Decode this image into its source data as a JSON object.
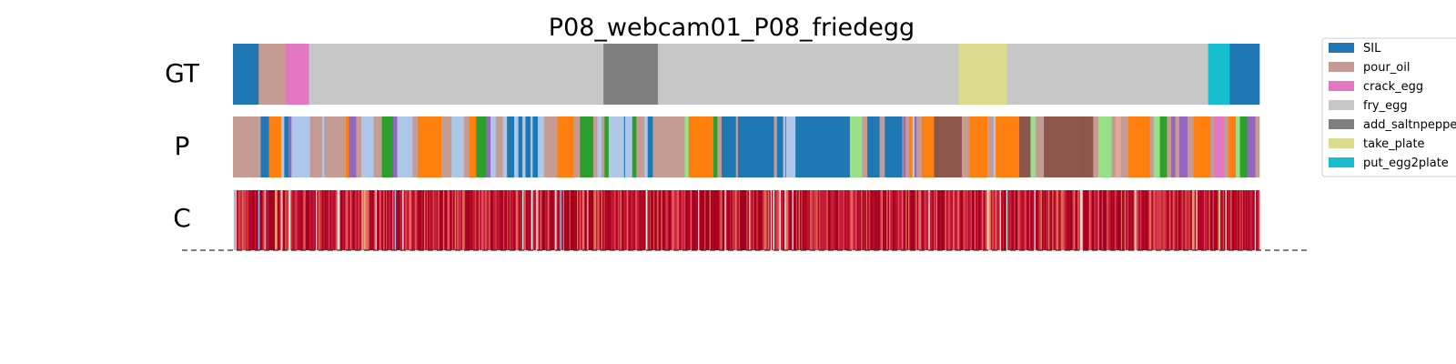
{
  "chart_data": {
    "type": "segmentation",
    "title": "P08_webcam01_P08_friedegg",
    "x_range": [
      0,
      1000
    ],
    "rows": [
      {
        "label": "GT"
      },
      {
        "label": "P"
      },
      {
        "label": "C"
      }
    ],
    "legend": {
      "placement": "right",
      "entries": [
        {
          "name": "SIL",
          "color": "#1f77b4"
        },
        {
          "name": "pour_oil",
          "color": "#c49c94"
        },
        {
          "name": "crack_egg",
          "color": "#e377c2"
        },
        {
          "name": "fry_egg",
          "color": "#c7c7c7"
        },
        {
          "name": "add_saltnpepper",
          "color": "#7f7f7f"
        },
        {
          "name": "take_plate",
          "color": "#dbdb8d"
        },
        {
          "name": "put_egg2plate",
          "color": "#17becf"
        }
      ]
    },
    "gt_segments": [
      {
        "start": 0,
        "end": 25,
        "label": "SIL"
      },
      {
        "start": 25,
        "end": 51,
        "label": "pour_oil"
      },
      {
        "start": 51,
        "end": 74,
        "label": "crack_egg"
      },
      {
        "start": 74,
        "end": 361,
        "label": "fry_egg"
      },
      {
        "start": 361,
        "end": 414,
        "label": "add_saltnpepper"
      },
      {
        "start": 414,
        "end": 707,
        "label": "fry_egg"
      },
      {
        "start": 707,
        "end": 754,
        "label": "take_plate"
      },
      {
        "start": 754,
        "end": 950,
        "label": "fry_egg"
      },
      {
        "start": 950,
        "end": 971,
        "label": "put_egg2plate"
      },
      {
        "start": 971,
        "end": 1000,
        "label": "SIL"
      }
    ],
    "pred_segments": [
      {
        "start": 0,
        "end": 27,
        "color": "#c49c94"
      },
      {
        "start": 27,
        "end": 35,
        "color": "#1f77b4"
      },
      {
        "start": 35,
        "end": 47,
        "color": "#ff7f0e"
      },
      {
        "start": 47,
        "end": 50,
        "color": "#aec7e8"
      },
      {
        "start": 50,
        "end": 54,
        "color": "#1f77b4"
      },
      {
        "start": 54,
        "end": 57,
        "color": "#9467bd"
      },
      {
        "start": 57,
        "end": 75,
        "color": "#aec7e8"
      },
      {
        "start": 75,
        "end": 87,
        "color": "#c49c94"
      },
      {
        "start": 87,
        "end": 89,
        "color": "#aec7e8"
      },
      {
        "start": 89,
        "end": 110,
        "color": "#c49c94"
      },
      {
        "start": 110,
        "end": 113,
        "color": "#ff7f0e"
      },
      {
        "start": 113,
        "end": 120,
        "color": "#9467bd"
      },
      {
        "start": 120,
        "end": 125,
        "color": "#c49c94"
      },
      {
        "start": 125,
        "end": 137,
        "color": "#aec7e8"
      },
      {
        "start": 137,
        "end": 145,
        "color": "#c49c94"
      },
      {
        "start": 145,
        "end": 156,
        "color": "#2ca02c"
      },
      {
        "start": 156,
        "end": 160,
        "color": "#9467bd"
      },
      {
        "start": 160,
        "end": 175,
        "color": "#aec7e8"
      },
      {
        "start": 175,
        "end": 180,
        "color": "#c49c94"
      },
      {
        "start": 180,
        "end": 203,
        "color": "#ff7f0e"
      },
      {
        "start": 203,
        "end": 213,
        "color": "#c49c94"
      },
      {
        "start": 213,
        "end": 225,
        "color": "#aec7e8"
      },
      {
        "start": 225,
        "end": 230,
        "color": "#c49c94"
      },
      {
        "start": 230,
        "end": 237,
        "color": "#ff7f0e"
      },
      {
        "start": 237,
        "end": 247,
        "color": "#2ca02c"
      },
      {
        "start": 247,
        "end": 251,
        "color": "#9467bd"
      },
      {
        "start": 251,
        "end": 256,
        "color": "#aec7e8"
      },
      {
        "start": 256,
        "end": 263,
        "color": "#c49c94"
      },
      {
        "start": 263,
        "end": 267,
        "color": "#aec7e8"
      },
      {
        "start": 267,
        "end": 274,
        "color": "#1f77b4"
      },
      {
        "start": 274,
        "end": 278,
        "color": "#aec7e8"
      },
      {
        "start": 278,
        "end": 282,
        "color": "#1f77b4"
      },
      {
        "start": 282,
        "end": 285,
        "color": "#aec7e8"
      },
      {
        "start": 285,
        "end": 290,
        "color": "#1f77b4"
      },
      {
        "start": 290,
        "end": 292,
        "color": "#aec7e8"
      },
      {
        "start": 292,
        "end": 297,
        "color": "#1f77b4"
      },
      {
        "start": 297,
        "end": 303,
        "color": "#aec7e8"
      },
      {
        "start": 303,
        "end": 316,
        "color": "#c49c94"
      },
      {
        "start": 316,
        "end": 332,
        "color": "#ff7f0e"
      },
      {
        "start": 332,
        "end": 338,
        "color": "#c49c94"
      },
      {
        "start": 338,
        "end": 351,
        "color": "#2ca02c"
      },
      {
        "start": 351,
        "end": 355,
        "color": "#c49c94"
      },
      {
        "start": 355,
        "end": 359,
        "color": "#aec7e8"
      },
      {
        "start": 359,
        "end": 362,
        "color": "#c49c94"
      },
      {
        "start": 362,
        "end": 366,
        "color": "#2ca02c"
      },
      {
        "start": 366,
        "end": 381,
        "color": "#aec7e8"
      },
      {
        "start": 381,
        "end": 382,
        "color": "#1f77b4"
      },
      {
        "start": 382,
        "end": 389,
        "color": "#aec7e8"
      },
      {
        "start": 389,
        "end": 393,
        "color": "#2ca02c"
      },
      {
        "start": 393,
        "end": 401,
        "color": "#c49c94"
      },
      {
        "start": 401,
        "end": 404,
        "color": "#aec7e8"
      },
      {
        "start": 404,
        "end": 409,
        "color": "#1f77b4"
      },
      {
        "start": 409,
        "end": 413,
        "color": "#c49c94"
      },
      {
        "start": 413,
        "end": 432,
        "color": "#c49c94"
      },
      {
        "start": 432,
        "end": 437,
        "color": "#c49c94"
      },
      {
        "start": 437,
        "end": 440,
        "color": "#c49c94"
      },
      {
        "start": 440,
        "end": 444,
        "color": "#98df8a"
      },
      {
        "start": 444,
        "end": 465,
        "color": "#ff7f0e"
      },
      {
        "start": 465,
        "end": 468,
        "color": "#ff7f0e"
      },
      {
        "start": 468,
        "end": 472,
        "color": "#2ca02c"
      },
      {
        "start": 472,
        "end": 476,
        "color": "#c49c94"
      },
      {
        "start": 476,
        "end": 490,
        "color": "#1f77b4"
      },
      {
        "start": 490,
        "end": 492,
        "color": "#c49c94"
      },
      {
        "start": 492,
        "end": 527,
        "color": "#1f77b4"
      },
      {
        "start": 527,
        "end": 530,
        "color": "#c49c94"
      },
      {
        "start": 530,
        "end": 536,
        "color": "#1f77b4"
      },
      {
        "start": 536,
        "end": 538,
        "color": "#aec7e8"
      },
      {
        "start": 538,
        "end": 539,
        "color": "#9467bd"
      },
      {
        "start": 539,
        "end": 548,
        "color": "#aec7e8"
      },
      {
        "start": 548,
        "end": 601,
        "color": "#1f77b4"
      },
      {
        "start": 601,
        "end": 613,
        "color": "#98df8a"
      },
      {
        "start": 613,
        "end": 618,
        "color": "#c49c94"
      },
      {
        "start": 618,
        "end": 630,
        "color": "#1f77b4"
      },
      {
        "start": 630,
        "end": 635,
        "color": "#c49c94"
      },
      {
        "start": 635,
        "end": 652,
        "color": "#1f77b4"
      },
      {
        "start": 652,
        "end": 653,
        "color": "#c49c94"
      },
      {
        "start": 653,
        "end": 655,
        "color": "#9467bd"
      },
      {
        "start": 655,
        "end": 659,
        "color": "#c49c94"
      },
      {
        "start": 659,
        "end": 662,
        "color": "#ff7f0e"
      },
      {
        "start": 662,
        "end": 664,
        "color": "#aec7e8"
      },
      {
        "start": 664,
        "end": 666,
        "color": "#9467bd"
      },
      {
        "start": 666,
        "end": 671,
        "color": "#c49c94"
      },
      {
        "start": 671,
        "end": 683,
        "color": "#ff7f0e"
      },
      {
        "start": 683,
        "end": 710,
        "color": "#8c564b"
      },
      {
        "start": 710,
        "end": 717,
        "color": "#c49c94"
      },
      {
        "start": 717,
        "end": 735,
        "color": "#ff7f0e"
      },
      {
        "start": 735,
        "end": 741,
        "color": "#c49c94"
      },
      {
        "start": 741,
        "end": 743,
        "color": "#aec7e8"
      },
      {
        "start": 743,
        "end": 757,
        "color": "#ff7f0e"
      },
      {
        "start": 757,
        "end": 766,
        "color": "#ff7f0e"
      },
      {
        "start": 766,
        "end": 777,
        "color": "#8c564b"
      },
      {
        "start": 777,
        "end": 782,
        "color": "#98df8a"
      },
      {
        "start": 782,
        "end": 790,
        "color": "#c49c94"
      },
      {
        "start": 790,
        "end": 825,
        "color": "#8c564b"
      },
      {
        "start": 825,
        "end": 838,
        "color": "#8c564b"
      },
      {
        "start": 838,
        "end": 843,
        "color": "#c49c94"
      },
      {
        "start": 843,
        "end": 856,
        "color": "#98df8a"
      },
      {
        "start": 856,
        "end": 860,
        "color": "#c49c94"
      },
      {
        "start": 860,
        "end": 865,
        "color": "#e0a89a"
      },
      {
        "start": 865,
        "end": 872,
        "color": "#c49c94"
      },
      {
        "start": 872,
        "end": 893,
        "color": "#ff7f0e"
      },
      {
        "start": 893,
        "end": 897,
        "color": "#c49c94"
      },
      {
        "start": 897,
        "end": 903,
        "color": "#98df8a"
      },
      {
        "start": 903,
        "end": 910,
        "color": "#2ca02c"
      },
      {
        "start": 910,
        "end": 914,
        "color": "#c49c94"
      },
      {
        "start": 914,
        "end": 918,
        "color": "#9467bd"
      },
      {
        "start": 918,
        "end": 922,
        "color": "#c49c94"
      },
      {
        "start": 922,
        "end": 930,
        "color": "#9467bd"
      },
      {
        "start": 930,
        "end": 936,
        "color": "#c49c94"
      },
      {
        "start": 936,
        "end": 952,
        "color": "#ff7f0e"
      },
      {
        "start": 952,
        "end": 956,
        "color": "#c49c94"
      },
      {
        "start": 956,
        "end": 966,
        "color": "#e377c2"
      },
      {
        "start": 966,
        "end": 970,
        "color": "#c49c94"
      },
      {
        "start": 970,
        "end": 977,
        "color": "#ff7f0e"
      },
      {
        "start": 977,
        "end": 981,
        "color": "#98df8a"
      },
      {
        "start": 981,
        "end": 988,
        "color": "#2ca02c"
      },
      {
        "start": 988,
        "end": 996,
        "color": "#9467bd"
      },
      {
        "start": 996,
        "end": 1000,
        "color": "#c49c94"
      }
    ],
    "confidence_seed": 8
  }
}
